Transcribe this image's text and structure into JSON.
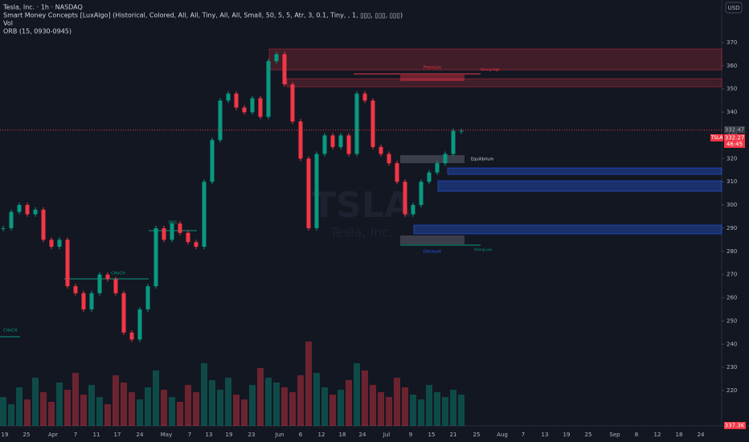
{
  "header": {
    "symbol": "Tesla, Inc. · 1h · NASDAQ",
    "indicator": "Smart Money Concepts [LuxAlgo] (Historical, Colored, All, All, Tiny, All, All, Small, 50, 5, 5, Atr, 3, 0.1, Tiny, , 1, ▯▯▯, ▯▯▯, ▯▯▯)",
    "volume": "Vol",
    "orb": "ORB (15, 0930-0945)"
  },
  "price_axis": {
    "currency": "USD",
    "ticks": [
      220,
      230,
      240,
      250,
      260,
      270,
      280,
      290,
      300,
      310,
      320,
      330,
      340,
      350,
      360,
      370
    ],
    "ylim": [
      220,
      370
    ],
    "high_label": "332.47",
    "symbol_tag": "TSLA",
    "last_price": 332.27,
    "countdown": "46:45"
  },
  "date_axis": {
    "labels": [
      "19",
      "25",
      "Apr",
      "7",
      "11",
      "17",
      "24",
      "May",
      "7",
      "13",
      "19",
      "23",
      "Jun",
      "6",
      "12",
      "18",
      "24",
      "Jul",
      "9",
      "15",
      "21",
      "25",
      "Aug",
      "7",
      "13",
      "19",
      "25",
      "Sep",
      "8",
      "12",
      "18",
      "24"
    ]
  },
  "watermark": {
    "ticker": "TSLA",
    "name": "Tesla, Inc."
  },
  "annotations": {
    "premium": "Premium",
    "strong_high": "Strong High",
    "equilibrium": "Equilibrium",
    "discount": "Discount",
    "strong_low": "Strong Low",
    "bos": "BOS",
    "choch": "CHoCH",
    "choch_left": "CHoCH"
  },
  "closes": [
    290,
    297,
    300,
    296,
    298,
    285,
    282,
    285,
    265,
    262,
    255,
    262,
    270,
    268,
    262,
    245,
    242,
    255,
    265,
    290,
    285,
    292,
    288,
    284,
    282,
    310,
    328,
    345,
    348,
    342,
    340,
    346,
    338,
    362,
    365,
    352,
    336,
    320,
    290,
    322,
    330,
    325,
    330,
    322,
    348,
    345,
    325,
    322,
    318,
    310,
    296,
    300,
    310,
    314,
    318,
    322,
    332,
    332
  ],
  "volumes": [
    120,
    90,
    160,
    110,
    200,
    140,
    100,
    180,
    150,
    220,
    130,
    170,
    120,
    90,
    210,
    180,
    140,
    110,
    160,
    230,
    150,
    120,
    100,
    170,
    140,
    260,
    190,
    150,
    200,
    130,
    110,
    170,
    240,
    200,
    180,
    160,
    140,
    210,
    350,
    220,
    160,
    130,
    150,
    190,
    260,
    230,
    170,
    140,
    120,
    200,
    160,
    130,
    110,
    170,
    140,
    120,
    150,
    130
  ],
  "volume_last": "337.3K"
}
